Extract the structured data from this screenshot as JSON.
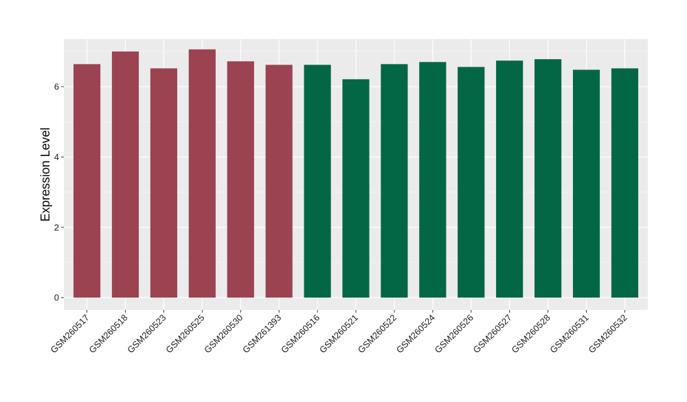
{
  "chart_data": {
    "type": "bar",
    "ylabel": "Expression Level",
    "xlabel": "",
    "ylim": [
      -0.35,
      7.35
    ],
    "yticks": [
      0,
      2,
      4,
      6
    ],
    "grid": true,
    "background": "#ebebeb",
    "colors": {
      "group1": "#9b4350",
      "group2": "#036745"
    },
    "categories": [
      "GSM260517",
      "GSM260518",
      "GSM260523",
      "GSM260525",
      "GSM260530",
      "GSM261393",
      "GSM260516",
      "GSM260521",
      "GSM260522",
      "GSM260524",
      "GSM260526",
      "GSM260527",
      "GSM260528",
      "GSM260531",
      "GSM260532"
    ],
    "values": [
      6.64,
      7.0,
      6.52,
      7.06,
      6.72,
      6.62,
      6.62,
      6.21,
      6.64,
      6.7,
      6.56,
      6.74,
      6.78,
      6.48,
      6.52
    ],
    "groups": [
      "group1",
      "group1",
      "group1",
      "group1",
      "group1",
      "group1",
      "group2",
      "group2",
      "group2",
      "group2",
      "group2",
      "group2",
      "group2",
      "group2",
      "group2"
    ]
  }
}
